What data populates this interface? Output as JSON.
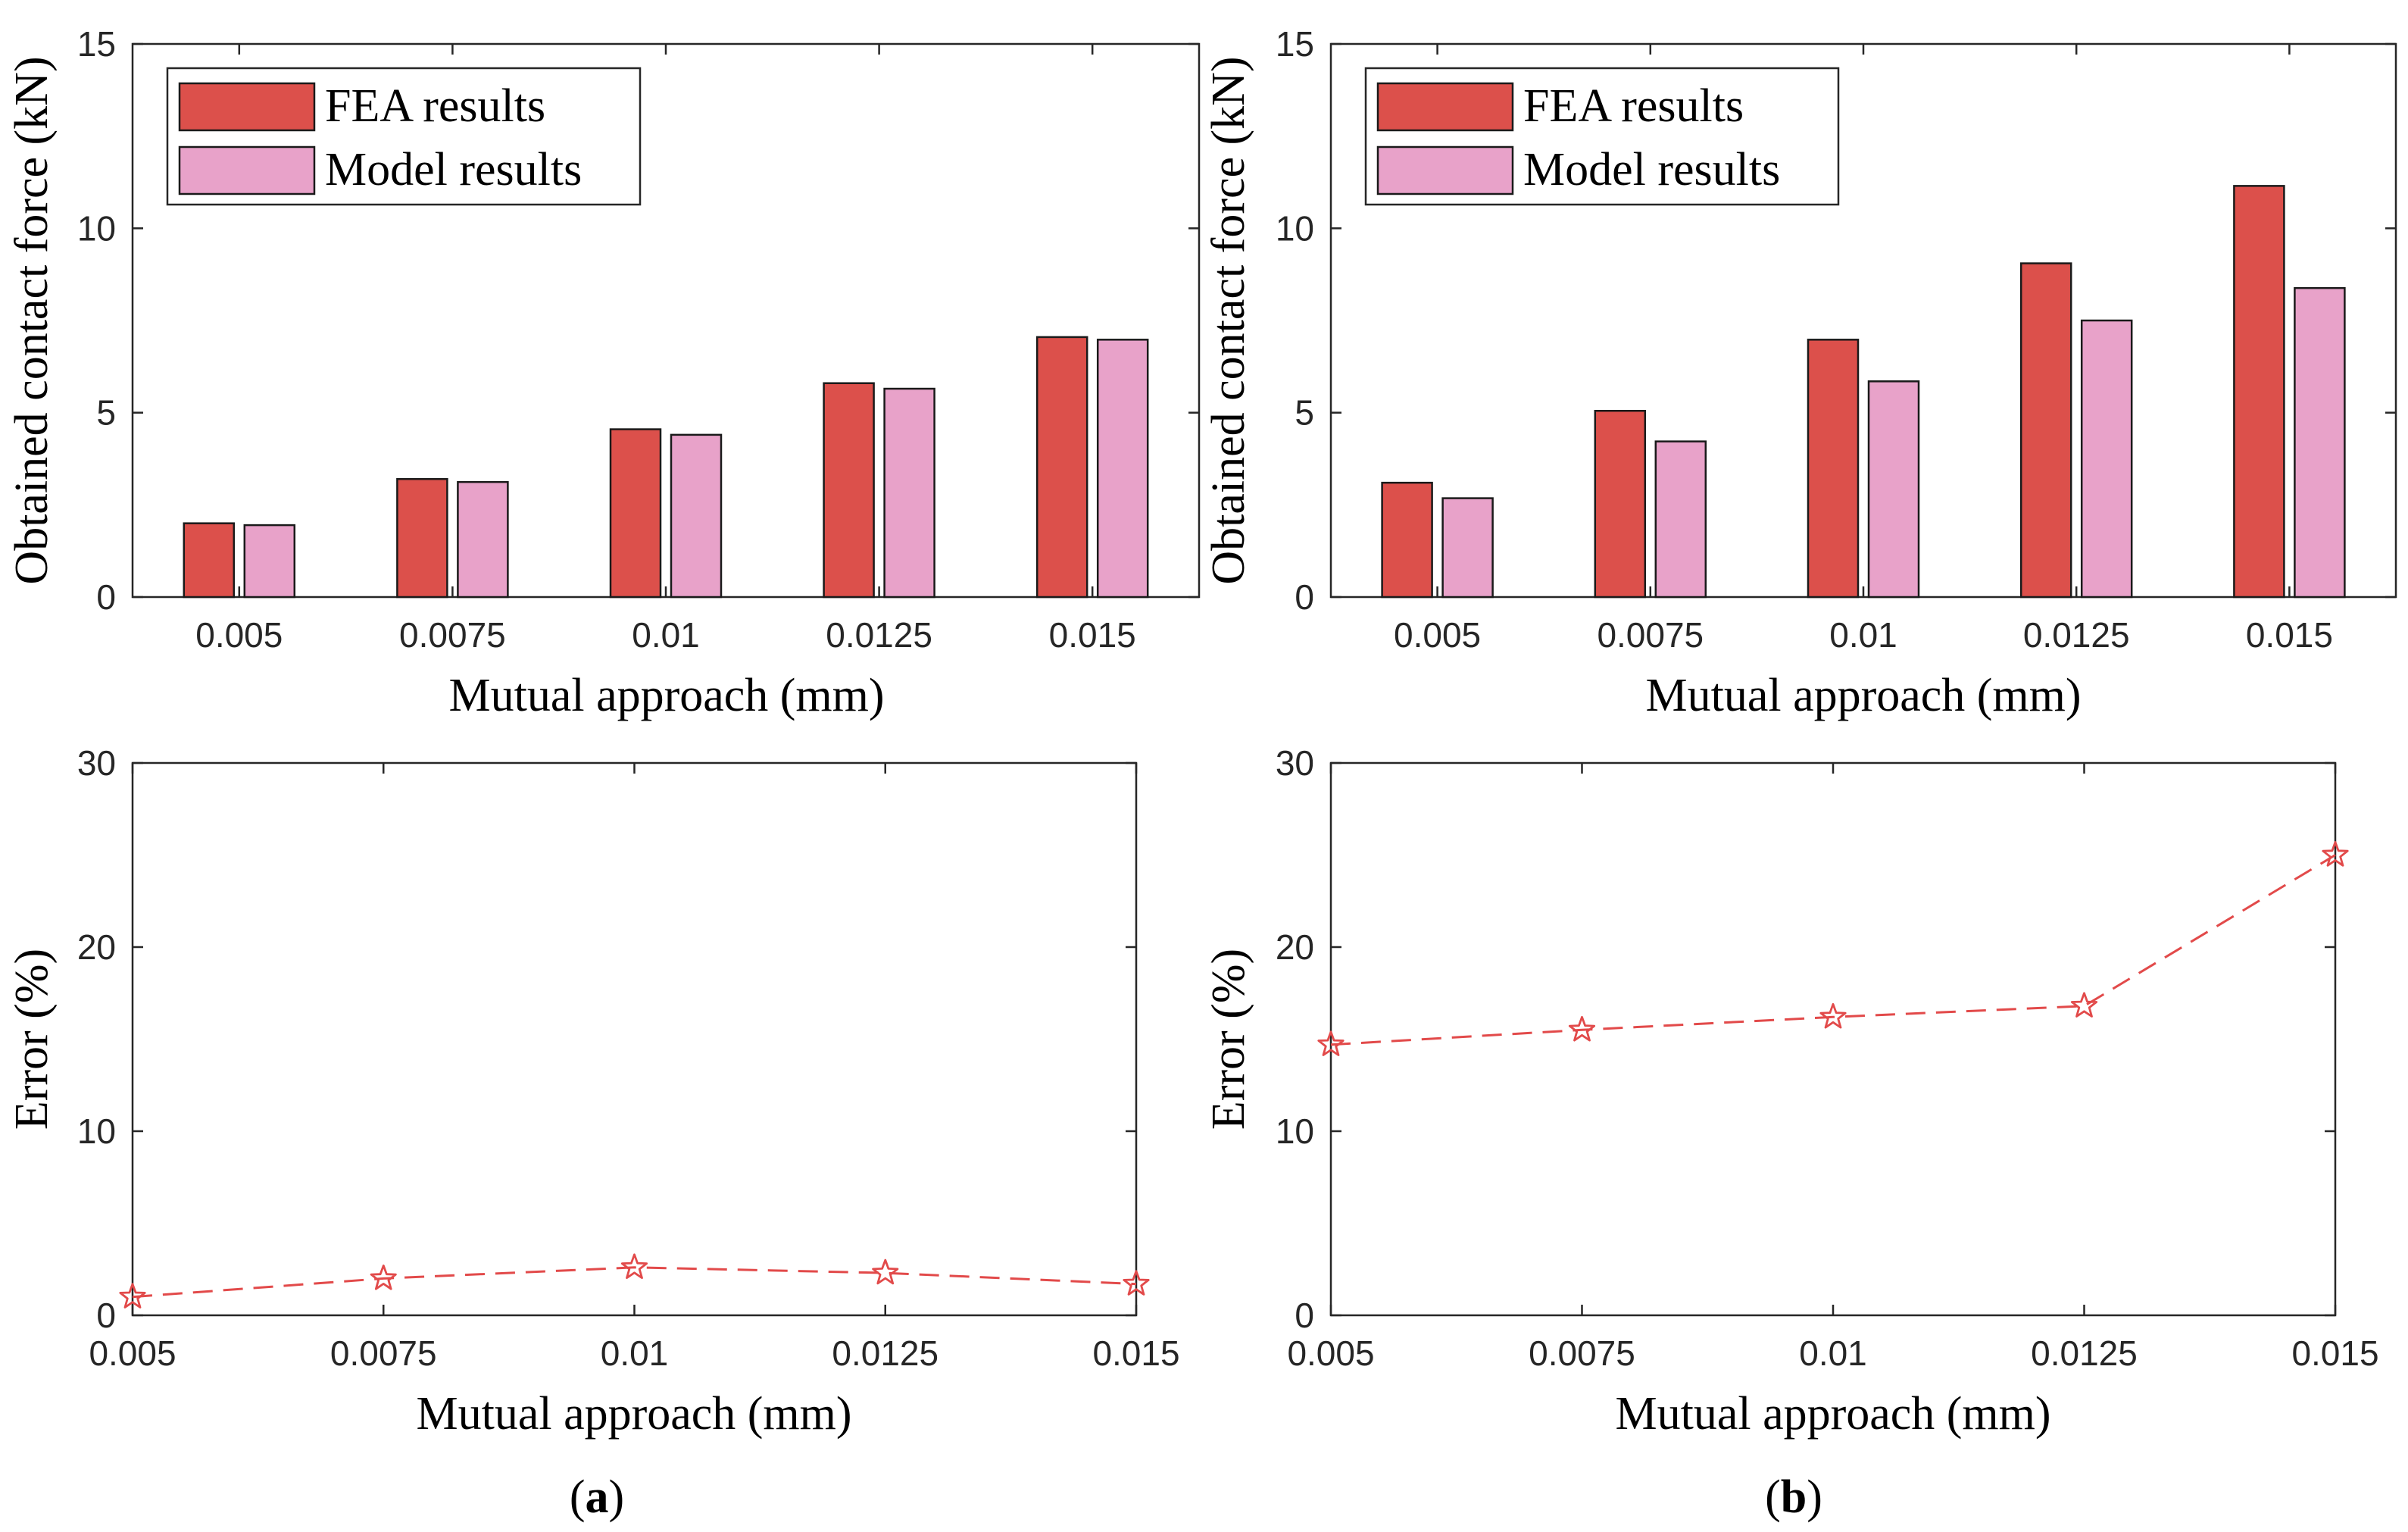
{
  "colors": {
    "fea": "#dc504b",
    "model": "#e8a2c9",
    "error_line": "#e24a4a",
    "axis": "#262626",
    "bar_edge": "#1a1a1a"
  },
  "chart_data": [
    {
      "id": "a_bar",
      "type": "bar",
      "categories": [
        "0.005",
        "0.0075",
        "0.01",
        "0.0125",
        "0.015"
      ],
      "series": [
        {
          "name": "FEA results",
          "values": [
            2.0,
            3.2,
            4.55,
            5.8,
            7.05
          ]
        },
        {
          "name": "Model results",
          "values": [
            1.95,
            3.12,
            4.4,
            5.65,
            6.98
          ]
        }
      ],
      "xlabel": "Mutual approach (mm)",
      "ylabel": "Obtained contact force (kN)",
      "ylim": [
        0,
        15
      ],
      "yticks": [
        "0",
        "5",
        "10",
        "15"
      ],
      "legend": "top-left",
      "grid": false
    },
    {
      "id": "b_bar",
      "type": "bar",
      "categories": [
        "0.005",
        "0.0075",
        "0.01",
        "0.0125",
        "0.015"
      ],
      "series": [
        {
          "name": "FEA results",
          "values": [
            3.1,
            5.05,
            6.98,
            9.05,
            11.15
          ]
        },
        {
          "name": "Model results",
          "values": [
            2.68,
            4.22,
            5.85,
            7.5,
            8.38
          ]
        }
      ],
      "xlabel": "Mutual approach (mm)",
      "ylabel": "Obtained contact force (kN)",
      "ylim": [
        0,
        15
      ],
      "yticks": [
        "0",
        "5",
        "10",
        "15"
      ],
      "legend": "top-left",
      "grid": false
    },
    {
      "id": "a_line",
      "type": "line",
      "x": [
        0.005,
        0.0075,
        0.01,
        0.0125,
        0.015
      ],
      "xticks": [
        "0.005",
        "0.0075",
        "0.01",
        "0.0125",
        "0.015"
      ],
      "series": [
        {
          "name": "Error",
          "values": [
            1.0,
            2.0,
            2.6,
            2.3,
            1.7
          ]
        }
      ],
      "xlabel": "Mutual approach (mm)",
      "ylabel": "Error (%)",
      "xlim": [
        0.005,
        0.015
      ],
      "ylim": [
        0,
        30
      ],
      "yticks": [
        "0",
        "10",
        "20",
        "30"
      ],
      "marker": "star",
      "linestyle": "dashed",
      "grid": false
    },
    {
      "id": "b_line",
      "type": "line",
      "x": [
        0.005,
        0.0075,
        0.01,
        0.0125,
        0.015
      ],
      "xticks": [
        "0.005",
        "0.0075",
        "0.01",
        "0.0125",
        "0.015"
      ],
      "series": [
        {
          "name": "Error",
          "values": [
            14.7,
            15.5,
            16.2,
            16.8,
            25.0
          ]
        }
      ],
      "xlabel": "Mutual approach (mm)",
      "ylabel": "Error (%)",
      "xlim": [
        0.005,
        0.015
      ],
      "ylim": [
        0,
        30
      ],
      "yticks": [
        "0",
        "10",
        "20",
        "30"
      ],
      "marker": "star",
      "linestyle": "dashed",
      "grid": false
    }
  ],
  "captions": {
    "a": {
      "open": "(",
      "letter": "a",
      "close": ")"
    },
    "b": {
      "open": "(",
      "letter": "b",
      "close": ")"
    }
  }
}
